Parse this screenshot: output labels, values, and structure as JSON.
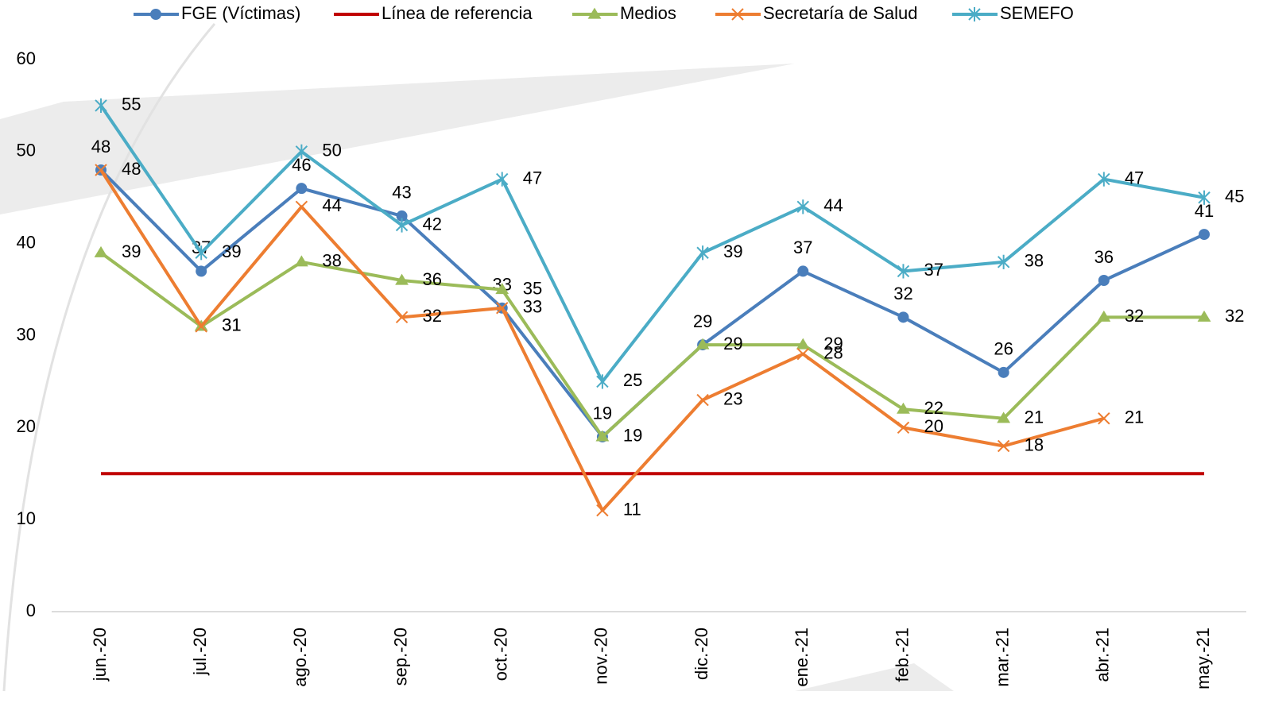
{
  "chart_data": {
    "type": "line",
    "categories": [
      "jun.-20",
      "jul.-20",
      "ago.-20",
      "sep.-20",
      "oct.-20",
      "nov.-20",
      "dic.-20",
      "ene.-21",
      "feb.-21",
      "mar.-21",
      "abr.-21",
      "may.-21"
    ],
    "series": [
      {
        "name": "FGE (Víctimas)",
        "color": "#4a7ebb",
        "marker": "circle",
        "labels": true,
        "values": [
          48,
          37,
          46,
          43,
          33,
          19,
          29,
          37,
          32,
          26,
          36,
          41
        ]
      },
      {
        "name": "Línea de referencia",
        "color": "#c00000",
        "marker": "none",
        "labels": false,
        "values": [
          15,
          15,
          15,
          15,
          15,
          15,
          15,
          15,
          15,
          15,
          15,
          15
        ]
      },
      {
        "name": "Medios",
        "color": "#9bbb59",
        "marker": "triangle",
        "labels": true,
        "values": [
          39,
          31,
          38,
          36,
          35,
          19,
          29,
          29,
          22,
          21,
          32,
          32
        ]
      },
      {
        "name": "Secretaría de Salud",
        "color": "#ed7d31",
        "marker": "x",
        "labels": true,
        "values": [
          48,
          31,
          44,
          32,
          33,
          11,
          23,
          28,
          20,
          18,
          21,
          null
        ]
      },
      {
        "name": "SEMEFO",
        "color": "#4bacc6",
        "marker": "asterisk",
        "labels": true,
        "values": [
          55,
          39,
          50,
          42,
          47,
          25,
          39,
          44,
          37,
          38,
          47,
          45
        ]
      }
    ],
    "ylim": [
      0,
      60
    ],
    "yticks": [
      0,
      10,
      20,
      30,
      40,
      50,
      60
    ],
    "grid": false,
    "legend": "top"
  }
}
